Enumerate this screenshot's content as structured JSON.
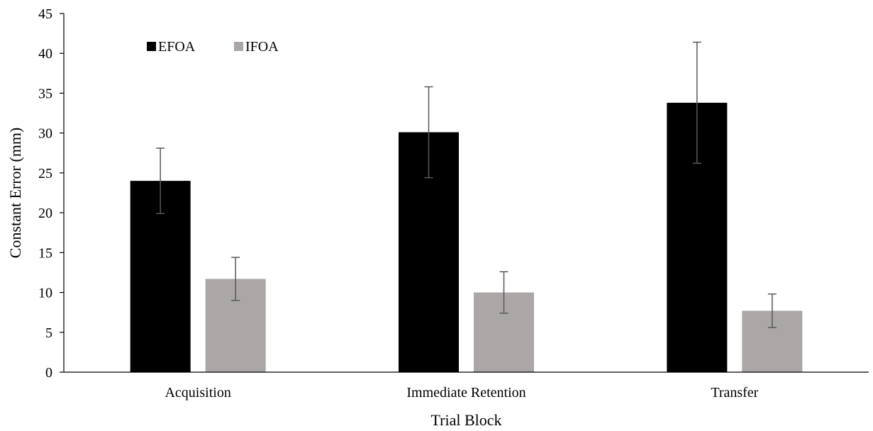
{
  "chart_data": {
    "type": "bar",
    "xlabel": "Trial Block",
    "ylabel": "Constant Error (mm)",
    "ylim": [
      0,
      45
    ],
    "yticks": [
      0,
      5,
      10,
      15,
      20,
      25,
      30,
      35,
      40,
      45
    ],
    "grid": false,
    "legend": "top-left",
    "categories": [
      "Acquisition",
      "Immediate Retention",
      "Transfer"
    ],
    "series": [
      {
        "name": "EFOA",
        "color": "#000000",
        "values": [
          24.0,
          30.1,
          33.8
        ],
        "error": [
          4.1,
          5.7,
          7.6
        ]
      },
      {
        "name": "IFOA",
        "color": "#aba7a6",
        "values": [
          11.7,
          10.0,
          7.7
        ],
        "error": [
          2.7,
          2.6,
          2.1
        ]
      }
    ]
  }
}
